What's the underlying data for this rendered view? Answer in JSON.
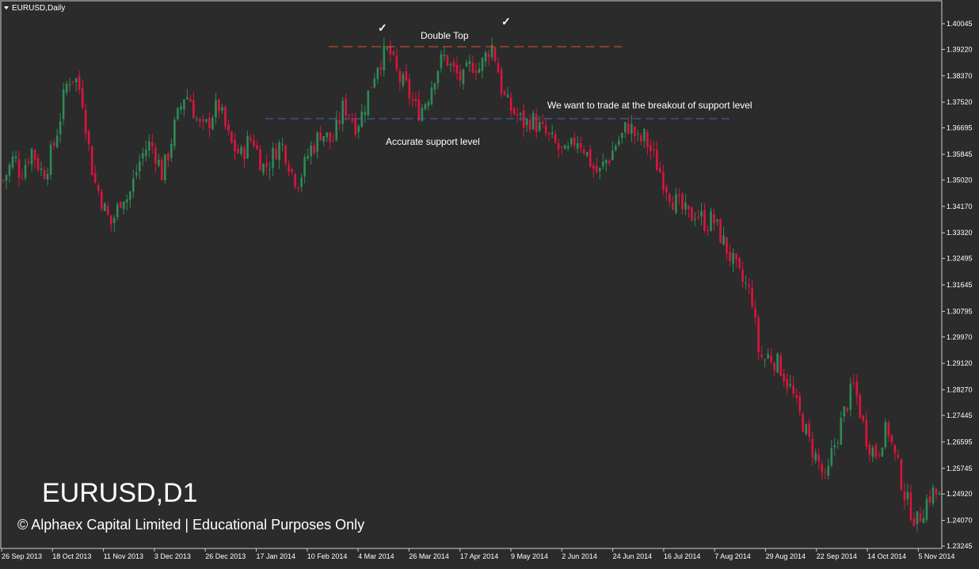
{
  "chart_title": "EURUSD,Daily",
  "watermark_symbol": "EURUSD,D1",
  "copyright": "© Alphaex Capital Limited | Educational Purposes Only",
  "chart_data": {
    "type": "candlestick",
    "symbol": "EURUSD",
    "timeframe": "Daily",
    "ylim": [
      1.228,
      1.405
    ],
    "y_ticks": [
      "1.40045",
      "1.39220",
      "1.38370",
      "1.37520",
      "1.36695",
      "1.35845",
      "1.35020",
      "1.34170",
      "1.33320",
      "1.32495",
      "1.31645",
      "1.30795",
      "1.29970",
      "1.29120",
      "1.28270",
      "1.27445",
      "1.26595",
      "1.25745",
      "1.24920",
      "1.24070",
      "1.23245"
    ],
    "x_ticks": [
      "26 Sep 2013",
      "18 Oct 2013",
      "11 Nov 2013",
      "3 Dec 2013",
      "26 Dec 2013",
      "17 Jan 2014",
      "10 Feb 2014",
      "4 Mar 2014",
      "26 Mar 2014",
      "17 Apr 2014",
      "9 May 2014",
      "2 Jun 2014",
      "24 Jun 2014",
      "16 Jul 2014",
      "7 Aug 2014",
      "29 Aug 2014",
      "22 Sep 2014",
      "14 Oct 2014",
      "5 Nov 2014"
    ],
    "close_path": [
      1.35,
      1.354,
      1.358,
      1.352,
      1.356,
      1.36,
      1.356,
      1.352,
      1.356,
      1.362,
      1.37,
      1.38,
      1.384,
      1.382,
      1.376,
      1.362,
      1.35,
      1.346,
      1.34,
      1.336,
      1.34,
      1.346,
      1.344,
      1.35,
      1.356,
      1.36,
      1.362,
      1.358,
      1.352,
      1.358,
      1.366,
      1.372,
      1.378,
      1.376,
      1.37,
      1.366,
      1.368,
      1.372,
      1.374,
      1.368,
      1.362,
      1.36,
      1.358,
      1.362,
      1.364,
      1.358,
      1.354,
      1.356,
      1.36,
      1.362,
      1.358,
      1.352,
      1.35,
      1.354,
      1.36,
      1.362,
      1.366,
      1.364,
      1.362,
      1.368,
      1.374,
      1.372,
      1.368,
      1.37,
      1.376,
      1.382,
      1.388,
      1.39,
      1.392,
      1.386,
      1.382,
      1.38,
      1.376,
      1.372,
      1.374,
      1.378,
      1.384,
      1.388,
      1.39,
      1.386,
      1.384,
      1.382,
      1.386,
      1.388,
      1.386,
      1.39,
      1.394,
      1.388,
      1.378,
      1.374,
      1.372,
      1.37,
      1.368,
      1.37,
      1.368,
      1.366,
      1.364,
      1.362,
      1.36,
      1.358,
      1.36,
      1.364,
      1.362,
      1.358,
      1.354,
      1.352,
      1.356,
      1.358,
      1.362,
      1.364,
      1.368,
      1.366,
      1.362,
      1.364,
      1.36,
      1.356,
      1.352,
      1.348,
      1.344,
      1.342,
      1.34,
      1.338,
      1.34,
      1.338,
      1.336,
      1.338,
      1.334,
      1.33,
      1.326,
      1.322,
      1.318,
      1.316,
      1.312,
      1.296,
      1.292,
      1.294,
      1.292,
      1.29,
      1.286,
      1.282,
      1.276,
      1.272,
      1.266,
      1.262,
      1.258,
      1.252,
      1.262,
      1.268,
      1.274,
      1.28,
      1.284,
      1.276,
      1.268,
      1.264,
      1.262,
      1.268,
      1.27,
      1.262,
      1.256,
      1.248,
      1.244,
      1.24,
      1.244,
      1.248,
      1.25,
      1.248
    ],
    "horizontal_levels": [
      {
        "label": "Double Top",
        "value": 1.3922,
        "color": "#e0502a"
      },
      {
        "label": "Accurate support level",
        "value": 1.369,
        "color": "#4a64b8"
      }
    ],
    "annotations": [
      "Double Top",
      "We want to trade at the breakout of support level",
      "Accurate support level"
    ],
    "markers": [
      "✓",
      "✓"
    ],
    "bull_color": "#2e8b57",
    "bear_color": "#dc143c",
    "background": "#2b2b2b",
    "grid": false
  }
}
